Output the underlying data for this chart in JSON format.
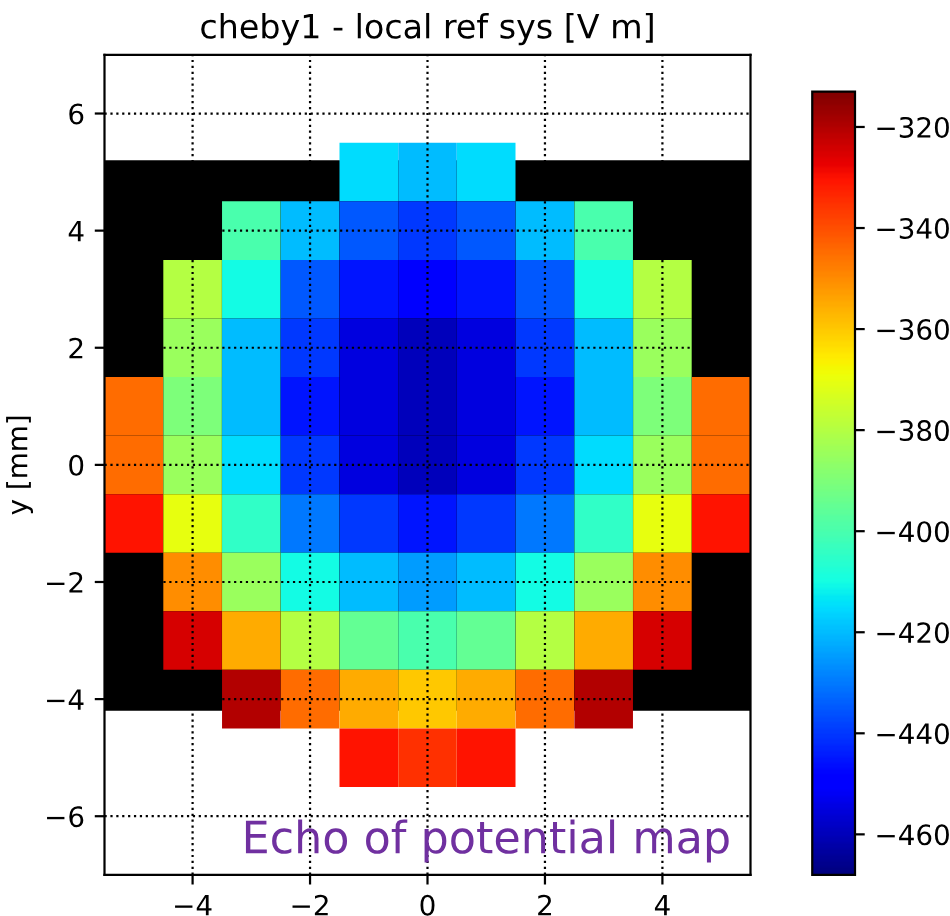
{
  "chart_data": {
    "type": "scatter",
    "title": "cheby1 - local ref sys [V m]",
    "ylabel": "y [mm]",
    "annotations": [
      "Echo of potential map"
    ],
    "marker": "square",
    "grid": true,
    "bands": [
      {
        "axis": "y",
        "from": -4.2,
        "to": 5.2,
        "color": "#000000"
      }
    ],
    "x": [
      -1,
      0,
      1,
      -3,
      -2,
      -1,
      0,
      1,
      2,
      3,
      -4,
      -3,
      -2,
      -1,
      0,
      1,
      2,
      3,
      4,
      -4,
      -3,
      -2,
      -1,
      0,
      1,
      2,
      3,
      4,
      -5,
      -4,
      -3,
      -2,
      -1,
      0,
      1,
      2,
      3,
      4,
      5,
      -5,
      -4,
      -3,
      -2,
      -1,
      0,
      1,
      2,
      3,
      4,
      5,
      -5,
      -4,
      -3,
      -2,
      -1,
      0,
      1,
      2,
      3,
      4,
      5,
      -4,
      -3,
      -2,
      -1,
      0,
      1,
      2,
      3,
      4,
      -4,
      -3,
      -2,
      -1,
      0,
      1,
      2,
      3,
      4,
      -3,
      -2,
      -1,
      0,
      1,
      2,
      3,
      -1,
      0,
      1
    ],
    "values": [
      5,
      5,
      5,
      4,
      4,
      4,
      4,
      4,
      4,
      4,
      3,
      3,
      3,
      3,
      3,
      3,
      3,
      3,
      3,
      2,
      2,
      2,
      2,
      2,
      2,
      2,
      2,
      2,
      1,
      1,
      1,
      1,
      1,
      1,
      1,
      1,
      1,
      1,
      1,
      0,
      0,
      0,
      0,
      0,
      0,
      0,
      0,
      0,
      0,
      0,
      -1,
      -1,
      -1,
      -1,
      -1,
      -1,
      -1,
      -1,
      -1,
      -1,
      -1,
      -2,
      -2,
      -2,
      -2,
      -2,
      -2,
      -2,
      -2,
      -2,
      -3,
      -3,
      -3,
      -3,
      -3,
      -3,
      -3,
      -3,
      -3,
      -4,
      -4,
      -4,
      -4,
      -4,
      -4,
      -4,
      -5,
      -5,
      -5
    ],
    "cvalues": [
      -415,
      -420,
      -415,
      -400,
      -420,
      -435,
      -440,
      -435,
      -420,
      -400,
      -380,
      -410,
      -435,
      -445,
      -450,
      -445,
      -435,
      -410,
      -380,
      -385,
      -420,
      -440,
      -455,
      -460,
      -455,
      -440,
      -420,
      -385,
      -345,
      -390,
      -420,
      -445,
      -455,
      -460,
      -455,
      -445,
      -420,
      -390,
      -345,
      -345,
      -385,
      -415,
      -440,
      -455,
      -460,
      -455,
      -440,
      -415,
      -385,
      -345,
      -330,
      -370,
      -405,
      -430,
      -440,
      -445,
      -440,
      -430,
      -405,
      -370,
      -330,
      -350,
      -385,
      -410,
      -420,
      -425,
      -420,
      -410,
      -385,
      -350,
      -325,
      -355,
      -380,
      -395,
      -400,
      -395,
      -380,
      -355,
      -325,
      -320,
      -345,
      -355,
      -360,
      -355,
      -345,
      -320,
      -330,
      -335,
      -330
    ],
    "xlim": [
      -5.5,
      5.5
    ],
    "ylim": [
      -7,
      7
    ],
    "xticks": [
      -4,
      -2,
      0,
      2,
      4
    ],
    "yticks": [
      -6,
      -4,
      -2,
      0,
      2,
      4,
      6
    ],
    "clim": [
      -468,
      -313
    ],
    "cticks": [
      -460,
      -440,
      -420,
      -400,
      -380,
      -360,
      -340,
      -320
    ]
  }
}
